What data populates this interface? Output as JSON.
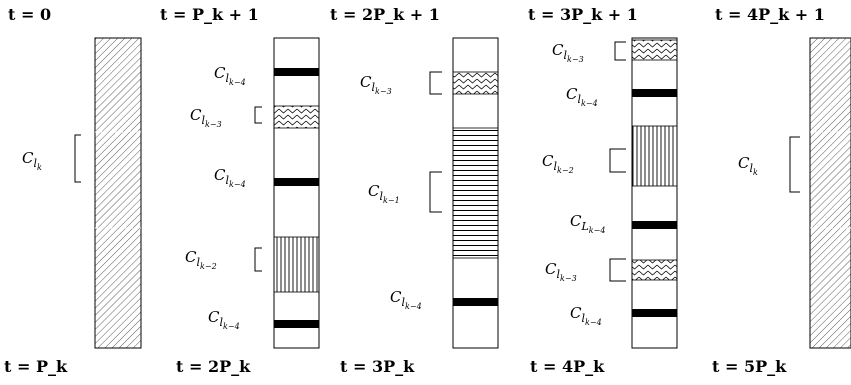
{
  "diagram": {
    "top_labels": [
      "t = 0",
      "t = P_k + 1",
      "t = 2P_k + 1",
      "t = 3P_k + 1",
      "t = 4P_k + 1"
    ],
    "bottom_labels": [
      "t = P_k",
      "t = 2P_k",
      "t = 3P_k",
      "t = 4P_k",
      "t = 5P_k"
    ],
    "columns": [
      {
        "fill": "hatched",
        "labels": [
          {
            "main": "C",
            "sub": "l",
            "subsub": "k"
          }
        ]
      },
      {
        "fill": "blocks",
        "labels": [
          {
            "main": "C",
            "sub": "l",
            "subsub": "k−4"
          },
          {
            "main": "C",
            "sub": "l",
            "subsub": "k−3"
          },
          {
            "main": "C",
            "sub": "l",
            "subsub": "k−4"
          },
          {
            "main": "C",
            "sub": "l",
            "subsub": "k−2"
          },
          {
            "main": "C",
            "sub": "l",
            "subsub": "k−4"
          }
        ]
      },
      {
        "fill": "blocks",
        "labels": [
          {
            "main": "C",
            "sub": "l",
            "subsub": "k−3"
          },
          {
            "main": "C",
            "sub": "l",
            "subsub": "k−1"
          },
          {
            "main": "C",
            "sub": "l",
            "subsub": "k−4"
          }
        ]
      },
      {
        "fill": "blocks",
        "labels": [
          {
            "main": "C",
            "sub": "l",
            "subsub": "k−3"
          },
          {
            "main": "C",
            "sub": "l",
            "subsub": "k−4"
          },
          {
            "main": "C",
            "sub": "l",
            "subsub": "k−2"
          },
          {
            "main": "C",
            "sub": "L",
            "subsub": "k−4"
          },
          {
            "main": "C",
            "sub": "l",
            "subsub": "k−3"
          },
          {
            "main": "C",
            "sub": "l",
            "subsub": "k−4"
          }
        ]
      },
      {
        "fill": "hatched",
        "labels": [
          {
            "main": "C",
            "sub": "l",
            "subsub": "k"
          }
        ]
      }
    ]
  }
}
